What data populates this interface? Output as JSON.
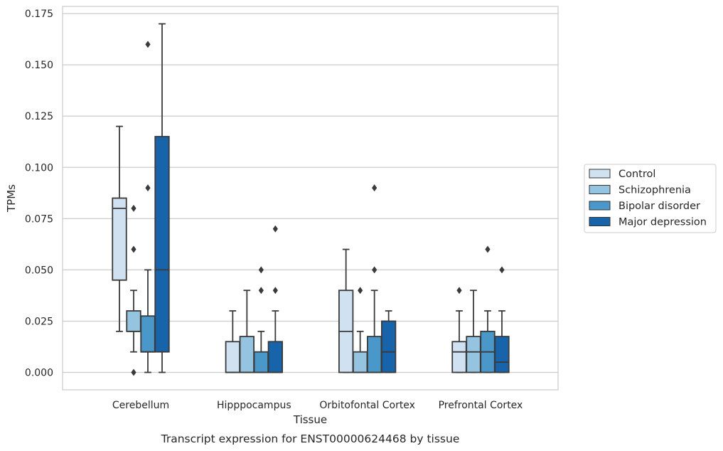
{
  "chart_data": {
    "type": "box",
    "caption": "Transcript expression for ENST00000624468 by tissue",
    "xlabel": "Tissue",
    "ylabel": "TPMs",
    "ylim": [
      -0.0085,
      0.1785
    ],
    "yticks": [
      0.0,
      0.025,
      0.05,
      0.075,
      0.1,
      0.125,
      0.15,
      0.175
    ],
    "ytick_labels": [
      "0.000",
      "0.025",
      "0.050",
      "0.075",
      "0.100",
      "0.125",
      "0.150",
      "0.175"
    ],
    "grid": true,
    "legend_position": "right",
    "categories": [
      "Cerebellum",
      "Hipppocampus",
      "Orbitofontal Cortex",
      "Prefrontal Cortex"
    ],
    "series": [
      {
        "name": "Control",
        "color": "#d0e1f2",
        "boxes": [
          {
            "whisker_low": 0.02,
            "q1": 0.045,
            "median": 0.08,
            "q3": 0.085,
            "whisker_high": 0.12,
            "outliers": []
          },
          {
            "whisker_low": 0.0,
            "q1": 0.0,
            "median": 0.0,
            "q3": 0.015,
            "whisker_high": 0.03,
            "outliers": []
          },
          {
            "whisker_low": 0.0,
            "q1": 0.0,
            "median": 0.02,
            "q3": 0.04,
            "whisker_high": 0.06,
            "outliers": []
          },
          {
            "whisker_low": 0.0,
            "q1": 0.0,
            "median": 0.01,
            "q3": 0.015,
            "whisker_high": 0.03,
            "outliers": [
              0.04
            ]
          }
        ]
      },
      {
        "name": "Schizophrenia",
        "color": "#94c4df",
        "boxes": [
          {
            "whisker_low": 0.01,
            "q1": 0.02,
            "median": 0.02,
            "q3": 0.03,
            "whisker_high": 0.04,
            "outliers": [
              0.0,
              0.06,
              0.08
            ]
          },
          {
            "whisker_low": 0.0,
            "q1": 0.0,
            "median": 0.0,
            "q3": 0.0175,
            "whisker_high": 0.04,
            "outliers": []
          },
          {
            "whisker_low": 0.0,
            "q1": 0.0,
            "median": 0.0,
            "q3": 0.01,
            "whisker_high": 0.02,
            "outliers": [
              0.04
            ]
          },
          {
            "whisker_low": 0.0,
            "q1": 0.0,
            "median": 0.01,
            "q3": 0.0175,
            "whisker_high": 0.04,
            "outliers": []
          }
        ]
      },
      {
        "name": "Bipolar disorder",
        "color": "#4a98c9",
        "boxes": [
          {
            "whisker_low": 0.0,
            "q1": 0.01,
            "median": 0.01,
            "q3": 0.0275,
            "whisker_high": 0.05,
            "outliers": [
              0.09,
              0.16
            ]
          },
          {
            "whisker_low": 0.0,
            "q1": 0.0,
            "median": 0.0,
            "q3": 0.01,
            "whisker_high": 0.02,
            "outliers": [
              0.04,
              0.05
            ]
          },
          {
            "whisker_low": 0.0,
            "q1": 0.0,
            "median": 0.0,
            "q3": 0.0175,
            "whisker_high": 0.04,
            "outliers": [
              0.05,
              0.09
            ]
          },
          {
            "whisker_low": 0.0,
            "q1": 0.0,
            "median": 0.01,
            "q3": 0.02,
            "whisker_high": 0.03,
            "outliers": [
              0.06
            ]
          }
        ]
      },
      {
        "name": "Major depression",
        "color": "#1764ab",
        "boxes": [
          {
            "whisker_low": 0.0,
            "q1": 0.01,
            "median": 0.05,
            "q3": 0.115,
            "whisker_high": 0.17,
            "outliers": []
          },
          {
            "whisker_low": 0.0,
            "q1": 0.0,
            "median": 0.0,
            "q3": 0.015,
            "whisker_high": 0.03,
            "outliers": [
              0.04,
              0.07
            ]
          },
          {
            "whisker_low": 0.0,
            "q1": 0.0,
            "median": 0.01,
            "q3": 0.025,
            "whisker_high": 0.03,
            "outliers": []
          },
          {
            "whisker_low": 0.0,
            "q1": 0.0,
            "median": 0.005,
            "q3": 0.0175,
            "whisker_high": 0.03,
            "outliers": [
              0.05
            ]
          }
        ]
      }
    ]
  }
}
